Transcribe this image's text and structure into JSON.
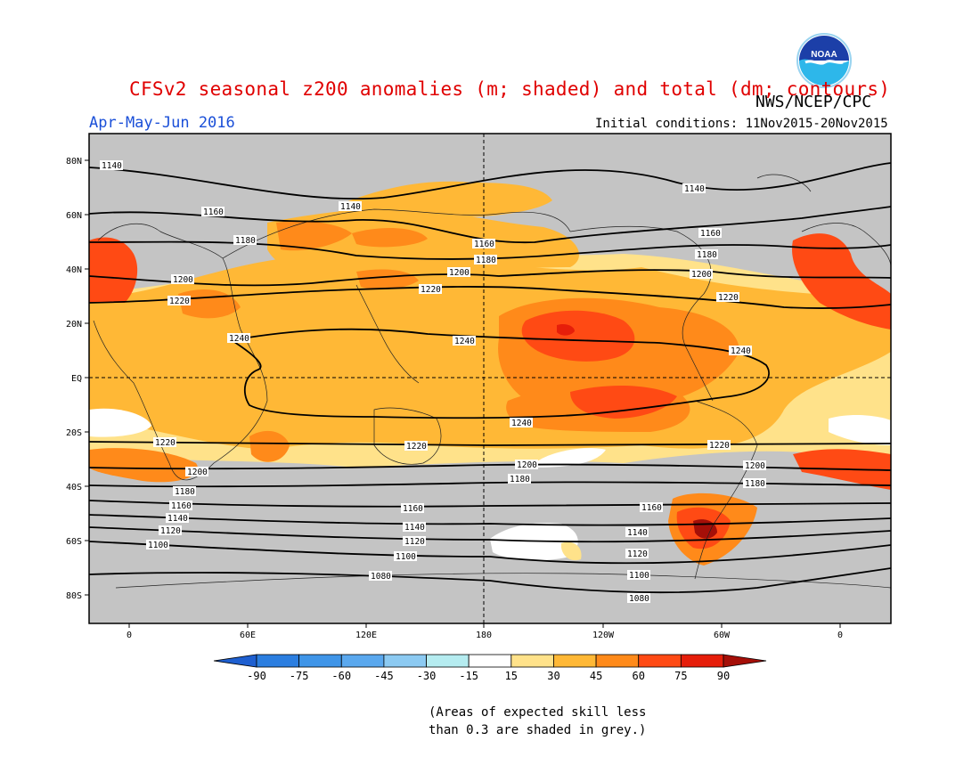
{
  "header": {
    "title": "CFSv2 seasonal z200 anomalies (m; shaded) and total (dm; contours)",
    "agency": "NWS/NCEP/CPC",
    "period": "Apr-May-Jun 2016",
    "initial_conditions": "Initial conditions: 11Nov2015-20Nov2015",
    "logo_text": "NOAA"
  },
  "map": {
    "lat_ticks": [
      "80N",
      "60N",
      "40N",
      "20N",
      "EQ",
      "20S",
      "40S",
      "60S",
      "80S"
    ],
    "lon_ticks": [
      "0",
      "60E",
      "120E",
      "180",
      "120W",
      "60W",
      "0"
    ],
    "contour_labels": [
      "1080",
      "1100",
      "1120",
      "1140",
      "1160",
      "1180",
      "1200",
      "1220",
      "1240"
    ]
  },
  "colorbar": {
    "labels": [
      "-90",
      "-75",
      "-60",
      "-45",
      "-30",
      "-15",
      "15",
      "30",
      "45",
      "60",
      "75",
      "90"
    ],
    "colors": [
      "#1e5fd0",
      "#2b7ee0",
      "#3f95e8",
      "#5aa8ee",
      "#8ccaf2",
      "#b5ecf0",
      "#ffffff",
      "#ffe28a",
      "#ffb836",
      "#ff8a1a",
      "#ff4a14",
      "#e61e0a",
      "#a50f08"
    ]
  },
  "footnote": {
    "line1": "(Areas of expected skill less",
    "line2": "than 0.3 are shaded in grey.)"
  }
}
